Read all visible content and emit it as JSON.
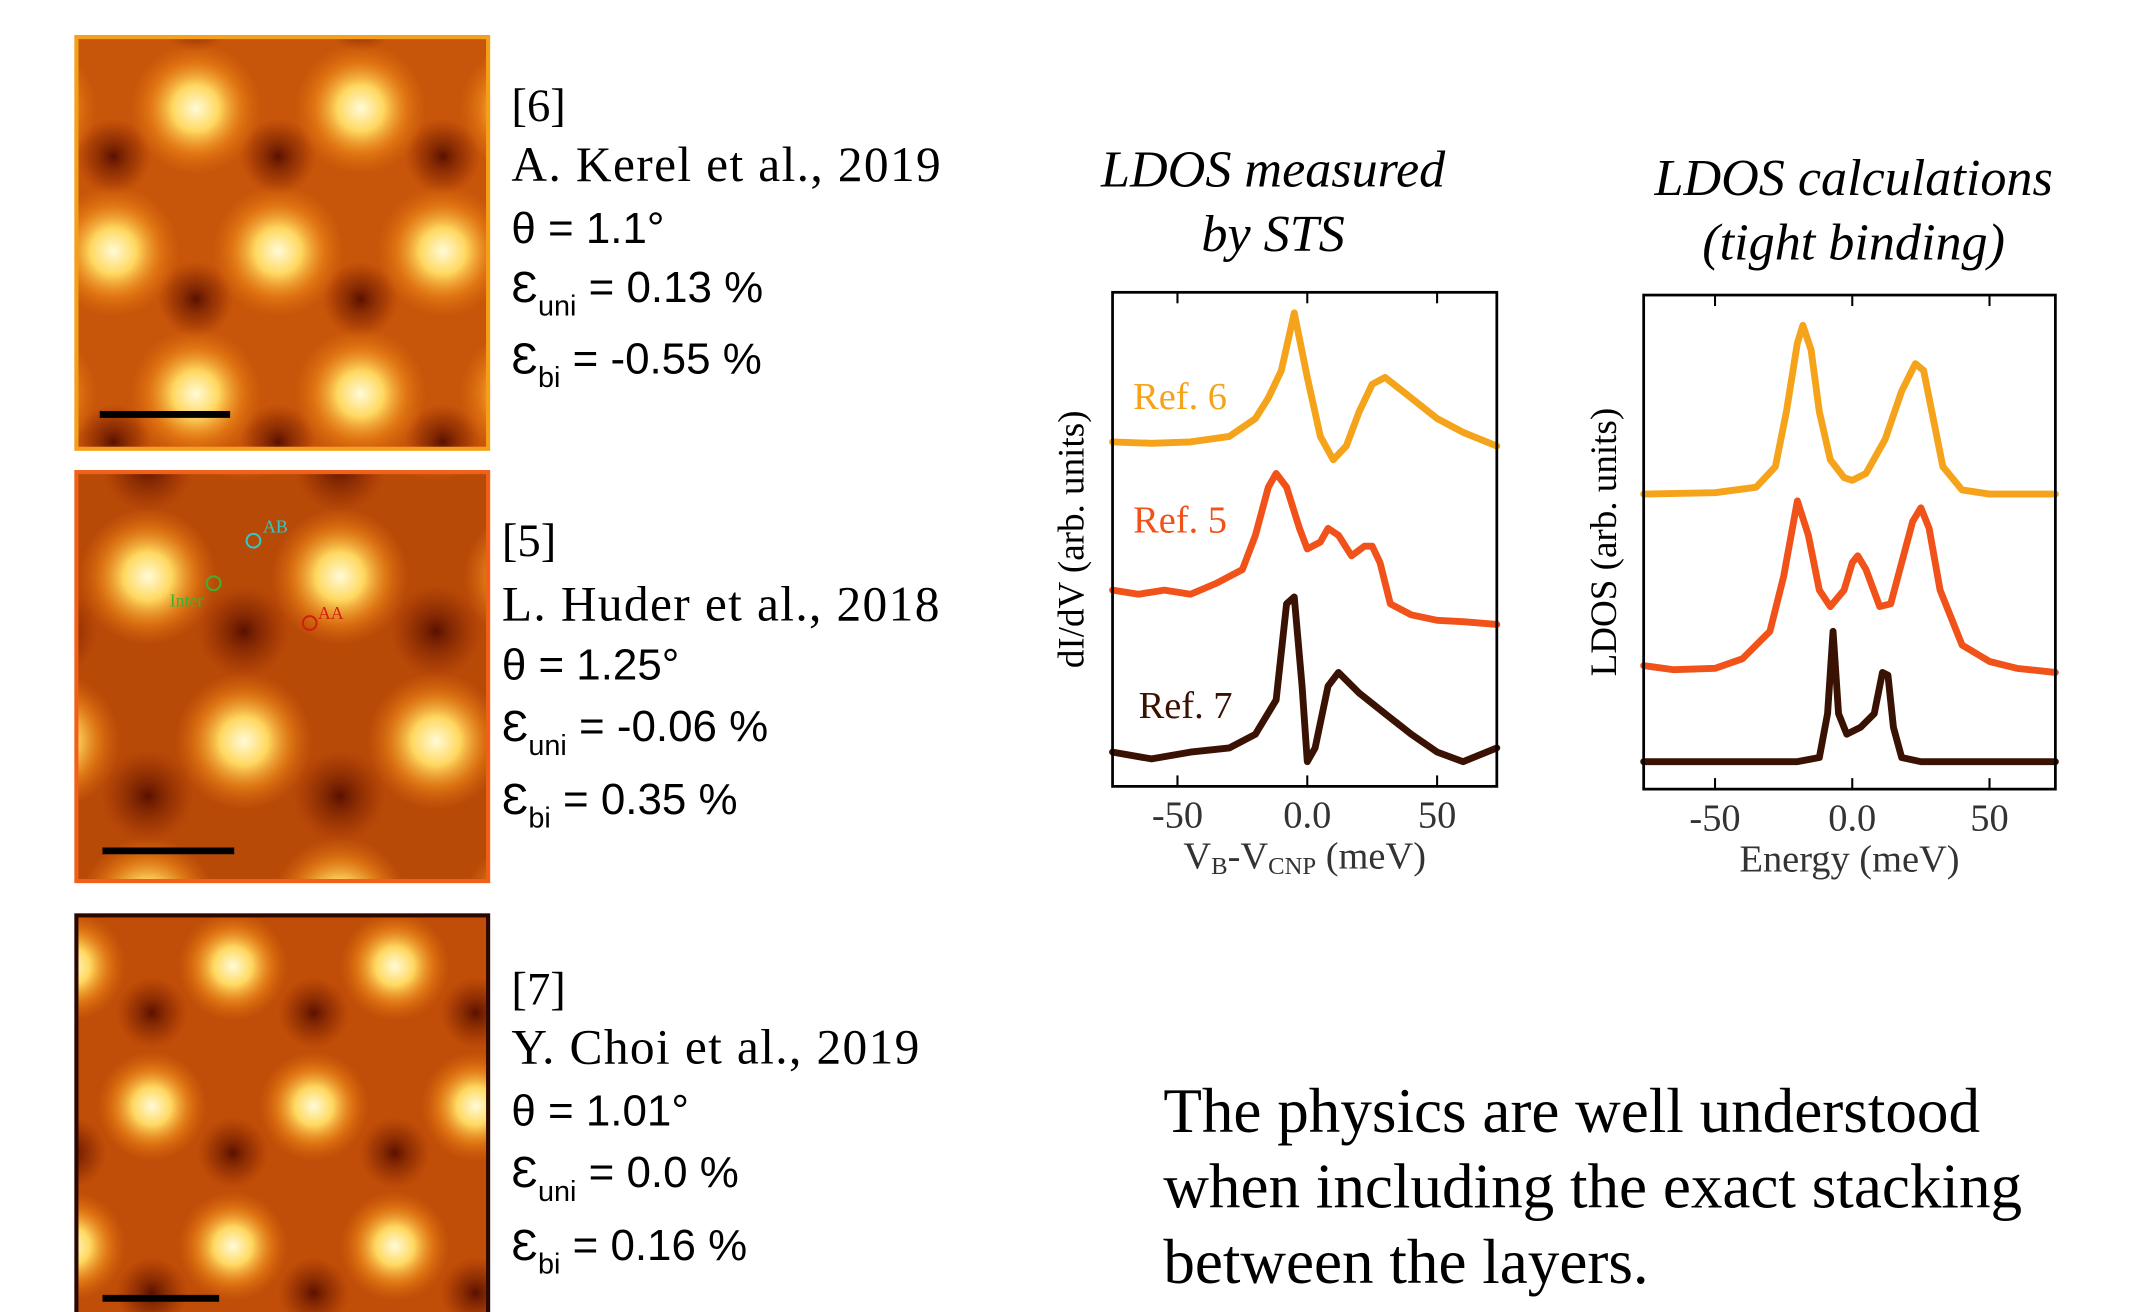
{
  "panels": [
    {
      "ref": "[6]",
      "authors": "A. Kerel et al., 2019",
      "theta": "θ = 1.1°",
      "eps_uni": {
        "symbol": "Ɛ",
        "sub": "uni",
        "text": " = 0.13 %"
      },
      "eps_bi": {
        "symbol": "Ɛ",
        "sub": "bi",
        "text": " = -0.55 %"
      }
    },
    {
      "ref": "[5]",
      "authors": "L. Huder et al., 2018",
      "theta": "θ = 1.25°",
      "eps_uni": {
        "symbol": "Ɛ",
        "sub": "uni",
        "text": " = -0.06 %"
      },
      "eps_bi": {
        "symbol": "Ɛ",
        "sub": "bi",
        "text": " = 0.35 %"
      },
      "markers": [
        "AB",
        "Inter",
        "AA"
      ]
    },
    {
      "ref": "[7]",
      "authors": "Y. Choi et al., 2019",
      "theta": "θ = 1.01°",
      "eps_uni": {
        "symbol": "Ɛ",
        "sub": "uni",
        "text": " = 0.0 %"
      },
      "eps_bi": {
        "symbol": "Ɛ",
        "sub": "bi",
        "text": " = 0.16 %"
      }
    }
  ],
  "conclusion": [
    "The physics are well understood",
    "when including the exact stacking",
    "between the layers."
  ],
  "chart_data": [
    {
      "type": "line",
      "title": [
        "LDOS measured",
        "by STS"
      ],
      "ylabel": "dI/dV (arb. units)",
      "xlabel": [
        {
          "text": "V"
        },
        {
          "text": "B",
          "sub": true
        },
        {
          "text": "-V"
        },
        {
          "text": "CNP",
          "sub": true
        },
        {
          "text": " (meV)"
        }
      ],
      "xlim": [
        -75,
        73
      ],
      "ylim": [
        0,
        360
      ],
      "xticks": [
        -50,
        {
          "value": 0,
          "label": "0.0"
        },
        50
      ],
      "series": [
        {
          "name": "Ref. 6",
          "color": "#f5a31a",
          "x": [
            -75,
            -60,
            -45,
            -30,
            -20,
            -15,
            -10,
            -5,
            0,
            5,
            10,
            15,
            20,
            25,
            30,
            40,
            50,
            60,
            73
          ],
          "values": [
            251,
            250,
            251,
            255,
            268,
            283,
            303,
            345,
            298,
            255,
            238,
            248,
            273,
            293,
            298,
            283,
            268,
            258,
            248
          ]
        },
        {
          "name": "Ref. 5",
          "color": "#f0521a",
          "x": [
            -75,
            -65,
            -55,
            -45,
            -35,
            -25,
            -20,
            -15,
            -12,
            -8,
            -3,
            0,
            5,
            8,
            12,
            17,
            22,
            25,
            28,
            32,
            40,
            50,
            60,
            73
          ],
          "values": [
            143,
            140,
            143,
            140,
            148,
            158,
            183,
            218,
            228,
            218,
            188,
            173,
            178,
            188,
            183,
            168,
            175,
            175,
            163,
            133,
            125,
            121,
            120,
            118
          ]
        },
        {
          "name": "Ref. 7",
          "color": "#3a1204",
          "x": [
            -75,
            -60,
            -45,
            -30,
            -20,
            -12,
            -8,
            -5,
            -2,
            0,
            3,
            8,
            12,
            20,
            30,
            40,
            50,
            60,
            73
          ],
          "values": [
            25,
            20,
            25,
            28,
            38,
            63,
            133,
            138,
            73,
            18,
            28,
            73,
            83,
            68,
            53,
            38,
            25,
            18,
            28
          ]
        }
      ]
    },
    {
      "type": "line",
      "title": [
        "LDOS calculations",
        "(tight binding)"
      ],
      "ylabel": "LDOS (arb. units)",
      "xlabel": [
        {
          "text": "Energy (meV)"
        }
      ],
      "xlim": [
        -76,
        74
      ],
      "ylim": [
        0,
        360
      ],
      "xticks": [
        -50,
        {
          "value": 0,
          "label": "0.0"
        },
        50
      ],
      "series": [
        {
          "color": "#f5a31a",
          "x": [
            -76,
            -50,
            -35,
            -28,
            -24,
            -20,
            -18,
            -15,
            -12,
            -8,
            -3,
            0,
            5,
            12,
            18,
            23,
            26,
            29,
            33,
            40,
            50,
            60,
            74
          ],
          "values": [
            215,
            216,
            220,
            235,
            275,
            325,
            338,
            320,
            275,
            240,
            227,
            225,
            230,
            255,
            290,
            310,
            305,
            275,
            235,
            218,
            215,
            215,
            215
          ]
        },
        {
          "color": "#f0521a",
          "x": [
            -76,
            -65,
            -50,
            -40,
            -30,
            -25,
            -20,
            -16,
            -12,
            -8,
            -3,
            0,
            2,
            5,
            10,
            14,
            18,
            22,
            25,
            28,
            32,
            40,
            50,
            60,
            74
          ],
          "values": [
            90,
            87,
            88,
            95,
            115,
            155,
            210,
            185,
            145,
            133,
            145,
            165,
            170,
            160,
            133,
            135,
            165,
            195,
            205,
            190,
            145,
            105,
            93,
            88,
            85
          ]
        },
        {
          "color": "#3a1204",
          "x": [
            -76,
            -20,
            -12,
            -9,
            -7,
            -5,
            -2,
            3,
            8,
            11,
            13,
            15,
            18,
            25,
            74
          ],
          "values": [
            20,
            20,
            23,
            55,
            115,
            55,
            40,
            45,
            55,
            85,
            83,
            45,
            23,
            20,
            20
          ]
        }
      ]
    }
  ]
}
